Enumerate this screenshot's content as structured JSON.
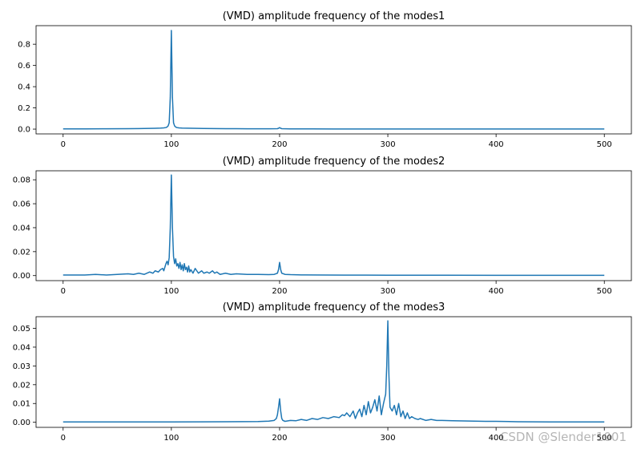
{
  "watermark": "CSDN @Slender1001",
  "chart_data": [
    {
      "type": "line",
      "title": "(VMD) amplitude frequency of the modes1",
      "xlabel": "",
      "ylabel": "",
      "xlim": [
        -25,
        525
      ],
      "ylim": [
        -0.045,
        0.975
      ],
      "xticks": [
        0,
        100,
        200,
        300,
        400,
        500
      ],
      "yticks": [
        0.0,
        0.2,
        0.4,
        0.6,
        0.8
      ],
      "ytick_decimals": 1,
      "color": "#1f77b4",
      "series": [
        {
          "x": [
            0,
            20,
            40,
            60,
            70,
            80,
            85,
            90,
            93,
            95,
            96,
            97,
            98,
            99,
            100,
            101,
            102,
            103,
            104,
            105,
            107,
            110,
            115,
            120,
            130,
            140,
            150,
            160,
            170,
            180,
            190,
            198,
            199,
            200,
            201,
            202,
            210,
            230,
            250,
            275,
            300,
            350,
            400,
            450,
            500
          ],
          "y": [
            0.002,
            0.002,
            0.003,
            0.004,
            0.005,
            0.007,
            0.008,
            0.01,
            0.012,
            0.015,
            0.02,
            0.03,
            0.06,
            0.3,
            0.93,
            0.3,
            0.06,
            0.03,
            0.02,
            0.015,
            0.012,
            0.01,
            0.009,
            0.008,
            0.006,
            0.005,
            0.004,
            0.004,
            0.003,
            0.003,
            0.003,
            0.004,
            0.008,
            0.014,
            0.008,
            0.004,
            0.002,
            0.002,
            0.001,
            0.001,
            0.001,
            0.001,
            0.001,
            0.001,
            0.001
          ]
        }
      ]
    },
    {
      "type": "line",
      "title": "(VMD) amplitude frequency of the modes2",
      "xlabel": "",
      "ylabel": "",
      "xlim": [
        -25,
        525
      ],
      "ylim": [
        -0.0042,
        0.0875
      ],
      "xticks": [
        0,
        100,
        200,
        300,
        400,
        500
      ],
      "yticks": [
        0.0,
        0.02,
        0.04,
        0.06,
        0.08
      ],
      "ytick_decimals": 2,
      "color": "#1f77b4",
      "series": [
        {
          "x": [
            0,
            20,
            30,
            40,
            50,
            60,
            65,
            70,
            75,
            80,
            83,
            85,
            88,
            90,
            92,
            93,
            95,
            96,
            97,
            98,
            99,
            100,
            101,
            102,
            103,
            104,
            105,
            106,
            107,
            108,
            109,
            110,
            111,
            112,
            113,
            114,
            115,
            116,
            117,
            118,
            120,
            122,
            125,
            128,
            130,
            133,
            135,
            138,
            140,
            142,
            145,
            150,
            155,
            160,
            170,
            180,
            190,
            195,
            198,
            199,
            200,
            201,
            202,
            205,
            210,
            220,
            240,
            260,
            280,
            300,
            350,
            400,
            450,
            500
          ],
          "y": [
            0.0005,
            0.0005,
            0.001,
            0.0005,
            0.001,
            0.0015,
            0.001,
            0.002,
            0.001,
            0.003,
            0.002,
            0.004,
            0.003,
            0.005,
            0.006,
            0.004,
            0.01,
            0.012,
            0.009,
            0.015,
            0.04,
            0.084,
            0.04,
            0.016,
            0.01,
            0.014,
            0.008,
            0.01,
            0.006,
            0.011,
            0.005,
            0.009,
            0.004,
            0.01,
            0.005,
            0.007,
            0.003,
            0.008,
            0.003,
            0.005,
            0.002,
            0.006,
            0.002,
            0.004,
            0.002,
            0.003,
            0.002,
            0.004,
            0.002,
            0.003,
            0.001,
            0.002,
            0.001,
            0.0015,
            0.001,
            0.001,
            0.0008,
            0.001,
            0.002,
            0.005,
            0.011,
            0.005,
            0.002,
            0.001,
            0.0008,
            0.0006,
            0.0005,
            0.0004,
            0.0004,
            0.0003,
            0.0003,
            0.0002,
            0.0002,
            0.0002
          ]
        }
      ]
    },
    {
      "type": "line",
      "title": "(VMD) amplitude frequency of the modes3",
      "xlabel": "",
      "ylabel": "",
      "xlim": [
        -25,
        525
      ],
      "ylim": [
        -0.0027,
        0.0562
      ],
      "xticks": [
        0,
        100,
        200,
        300,
        400,
        500
      ],
      "yticks": [
        0.0,
        0.01,
        0.02,
        0.03,
        0.04,
        0.05
      ],
      "ytick_decimals": 2,
      "color": "#1f77b4",
      "series": [
        {
          "x": [
            0,
            50,
            100,
            150,
            180,
            190,
            195,
            197,
            198,
            199,
            200,
            201,
            202,
            203,
            205,
            210,
            215,
            220,
            225,
            230,
            235,
            240,
            245,
            250,
            255,
            258,
            260,
            262,
            265,
            268,
            270,
            272,
            274,
            276,
            278,
            280,
            282,
            284,
            286,
            288,
            290,
            292,
            294,
            296,
            298,
            299,
            300,
            301,
            302,
            304,
            306,
            308,
            310,
            312,
            314,
            316,
            318,
            320,
            322,
            325,
            328,
            330,
            335,
            340,
            345,
            350,
            360,
            370,
            380,
            390,
            400,
            420,
            450,
            500
          ],
          "y": [
            0.0002,
            0.0002,
            0.0002,
            0.0003,
            0.0004,
            0.0006,
            0.001,
            0.002,
            0.004,
            0.008,
            0.0125,
            0.006,
            0.002,
            0.001,
            0.0005,
            0.001,
            0.0008,
            0.0015,
            0.001,
            0.002,
            0.0015,
            0.0025,
            0.002,
            0.003,
            0.0025,
            0.004,
            0.0035,
            0.005,
            0.003,
            0.006,
            0.002,
            0.005,
            0.007,
            0.003,
            0.009,
            0.004,
            0.011,
            0.005,
            0.008,
            0.012,
            0.006,
            0.014,
            0.004,
            0.01,
            0.015,
            0.03,
            0.054,
            0.025,
            0.008,
            0.006,
            0.009,
            0.004,
            0.01,
            0.003,
            0.006,
            0.002,
            0.005,
            0.002,
            0.003,
            0.002,
            0.0015,
            0.002,
            0.001,
            0.0015,
            0.001,
            0.001,
            0.0008,
            0.0007,
            0.0006,
            0.0005,
            0.0005,
            0.0003,
            0.0002,
            0.0002
          ]
        }
      ]
    }
  ]
}
